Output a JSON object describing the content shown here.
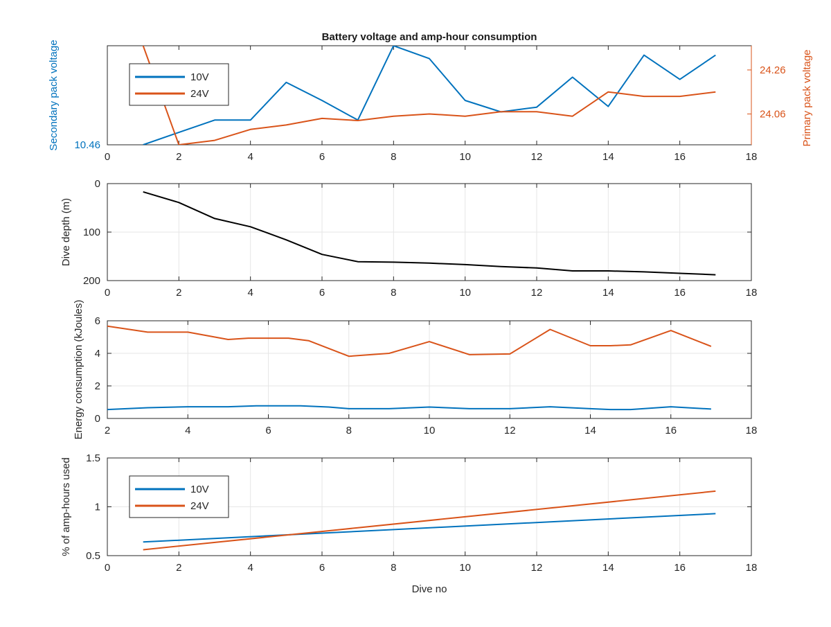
{
  "figure": {
    "title": "Battery voltage and amp-hour consumption"
  },
  "chart_data": [
    {
      "type": "line",
      "title": "Battery voltage and amp-hour consumption",
      "xlabel": "",
      "ylabel_left": "Secondary pack voltage",
      "ylabel_right": "Primary pack voltage",
      "xlim": [
        0,
        18
      ],
      "xticks": [
        0,
        2,
        4,
        6,
        8,
        10,
        12,
        14,
        16,
        18
      ],
      "ylim_left": [
        10.46,
        10.5
      ],
      "yticks_left": [
        10.46
      ],
      "ylim_right": [
        23.92,
        24.37
      ],
      "yticks_right": [
        24.06,
        24.26
      ],
      "grid": false,
      "legend_position": "top-left",
      "series": [
        {
          "name": "10V",
          "axis": "left",
          "color": "#0072bd",
          "x": [
            1,
            2,
            3,
            4,
            5,
            6,
            7,
            8,
            9,
            10,
            11,
            12,
            13,
            14,
            15,
            16,
            17
          ],
          "y": [
            10.46,
            10.465,
            10.47,
            10.47,
            10.4852,
            10.4779,
            10.47,
            10.5,
            10.4948,
            10.4779,
            10.4733,
            10.4752,
            10.4873,
            10.4755,
            10.4962,
            10.4864,
            10.4962
          ]
        },
        {
          "name": "24V",
          "axis": "right",
          "color": "#d95319",
          "x": [
            1,
            2,
            3,
            4,
            5,
            6,
            7,
            8,
            9,
            10,
            11,
            12,
            13,
            14,
            15,
            16,
            17
          ],
          "y": [
            24.37,
            23.92,
            23.94,
            23.99,
            24.01,
            24.04,
            24.03,
            24.05,
            24.06,
            24.05,
            24.07,
            24.07,
            24.05,
            24.16,
            24.14,
            24.14,
            24.16
          ]
        }
      ]
    },
    {
      "type": "line",
      "xlabel": "",
      "ylabel": "Dive depth (m)",
      "xlim": [
        0,
        18
      ],
      "xticks": [
        0,
        2,
        4,
        6,
        8,
        10,
        12,
        14,
        16,
        18
      ],
      "ylim": [
        0,
        200
      ],
      "yticks": [
        0,
        100,
        200
      ],
      "y_reversed": true,
      "grid": true,
      "series": [
        {
          "color": "#000000",
          "x": [
            1,
            2,
            3,
            4,
            5,
            6,
            7,
            8,
            9,
            10,
            11,
            12,
            13,
            14,
            15,
            16,
            17
          ],
          "y": [
            17,
            39,
            72,
            89,
            116,
            146,
            161,
            162,
            164,
            167,
            171,
            174,
            180,
            180,
            182,
            185,
            188
          ]
        }
      ]
    },
    {
      "type": "line",
      "xlabel": "",
      "ylabel": "Energy consumption (kJoules)",
      "xlim": [
        2,
        18
      ],
      "xticks": [
        2,
        4,
        6,
        8,
        10,
        12,
        14,
        16,
        18
      ],
      "ylim": [
        0,
        6
      ],
      "yticks": [
        0,
        2,
        4,
        6
      ],
      "grid": true,
      "series": [
        {
          "color": "#d95319",
          "x": [
            2,
            3,
            4,
            5,
            5.5,
            6.5,
            7,
            8,
            9,
            10,
            11,
            12,
            13,
            14,
            14.5,
            15,
            16,
            17
          ],
          "y": [
            5.67,
            5.3,
            5.3,
            4.85,
            4.93,
            4.93,
            4.78,
            3.82,
            4.0,
            4.72,
            3.92,
            3.96,
            5.47,
            4.47,
            4.47,
            4.52,
            5.4,
            4.43
          ]
        },
        {
          "color": "#0072bd",
          "x": [
            2,
            3,
            4,
            5,
            5.7,
            6.8,
            7.5,
            8,
            9,
            10,
            11,
            12,
            13,
            14,
            14.5,
            15,
            16,
            17
          ],
          "y": [
            0.55,
            0.66,
            0.72,
            0.72,
            0.78,
            0.78,
            0.7,
            0.6,
            0.6,
            0.7,
            0.6,
            0.6,
            0.72,
            0.6,
            0.55,
            0.55,
            0.72,
            0.58
          ]
        }
      ]
    },
    {
      "type": "line",
      "xlabel": "Dive no",
      "ylabel": "% of amp-hours used",
      "xlim": [
        0,
        18
      ],
      "xticks": [
        0,
        2,
        4,
        6,
        8,
        10,
        12,
        14,
        16,
        18
      ],
      "ylim": [
        0.5,
        1.5
      ],
      "yticks": [
        0.5,
        1,
        1.5
      ],
      "grid": true,
      "legend_position": "top-left",
      "series": [
        {
          "name": "10V",
          "color": "#0072bd",
          "x": [
            1,
            17
          ],
          "y": [
            0.64,
            0.93
          ]
        },
        {
          "name": "24V",
          "color": "#d95319",
          "x": [
            1,
            17
          ],
          "y": [
            0.56,
            1.16
          ]
        }
      ]
    }
  ]
}
